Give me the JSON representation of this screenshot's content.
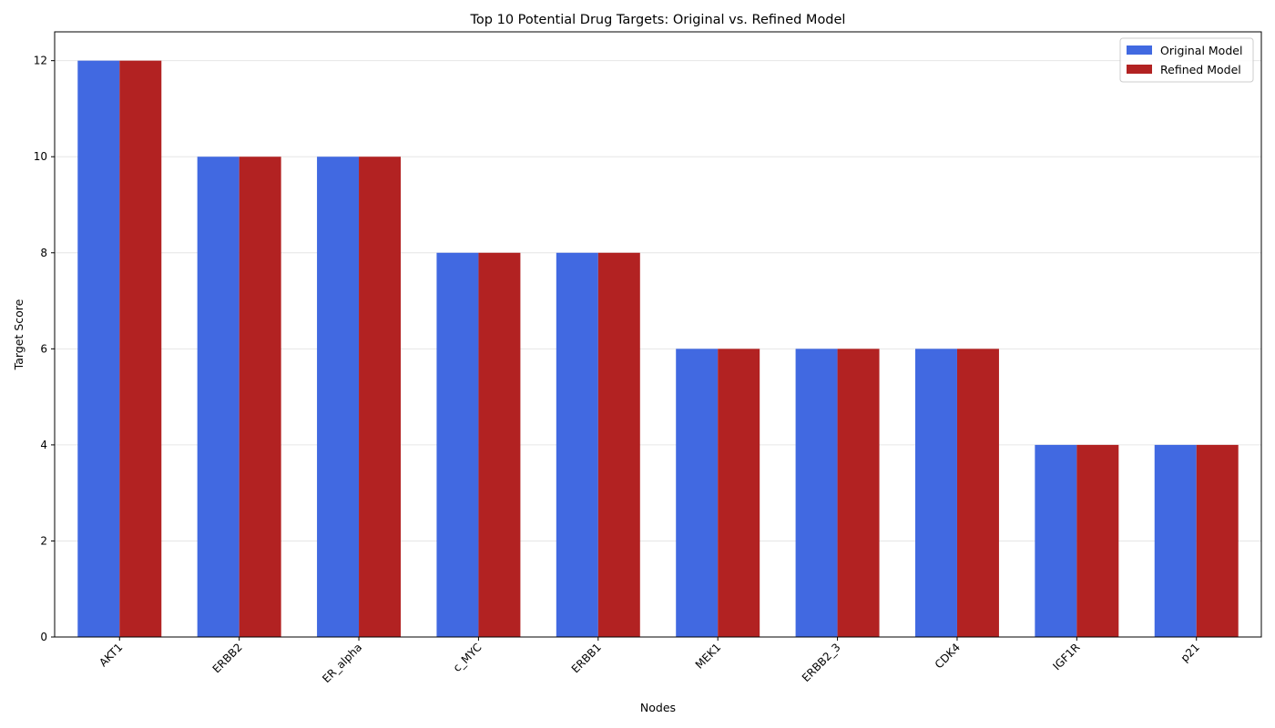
{
  "chart_data": {
    "type": "bar",
    "title": "Top 10 Potential Drug Targets: Original vs. Refined Model",
    "xlabel": "Nodes",
    "ylabel": "Target Score",
    "categories": [
      "AKT1",
      "ERBB2",
      "ER_alpha",
      "c_MYC",
      "ERBB1",
      "MEK1",
      "ERBB2_3",
      "CDK4",
      "IGF1R",
      "p21"
    ],
    "series": [
      {
        "name": "Original Model",
        "color": "#4169e1",
        "values": [
          12,
          10,
          10,
          8,
          8,
          6,
          6,
          6,
          4,
          4
        ]
      },
      {
        "name": "Refined Model",
        "color": "#b22222",
        "values": [
          12,
          10,
          10,
          8,
          8,
          6,
          6,
          6,
          4,
          4
        ]
      }
    ],
    "ylim": [
      0,
      12.6
    ],
    "yticks": [
      0,
      2,
      4,
      6,
      8,
      10,
      12
    ],
    "grid": "y-axis",
    "legend_position": "top-right"
  }
}
